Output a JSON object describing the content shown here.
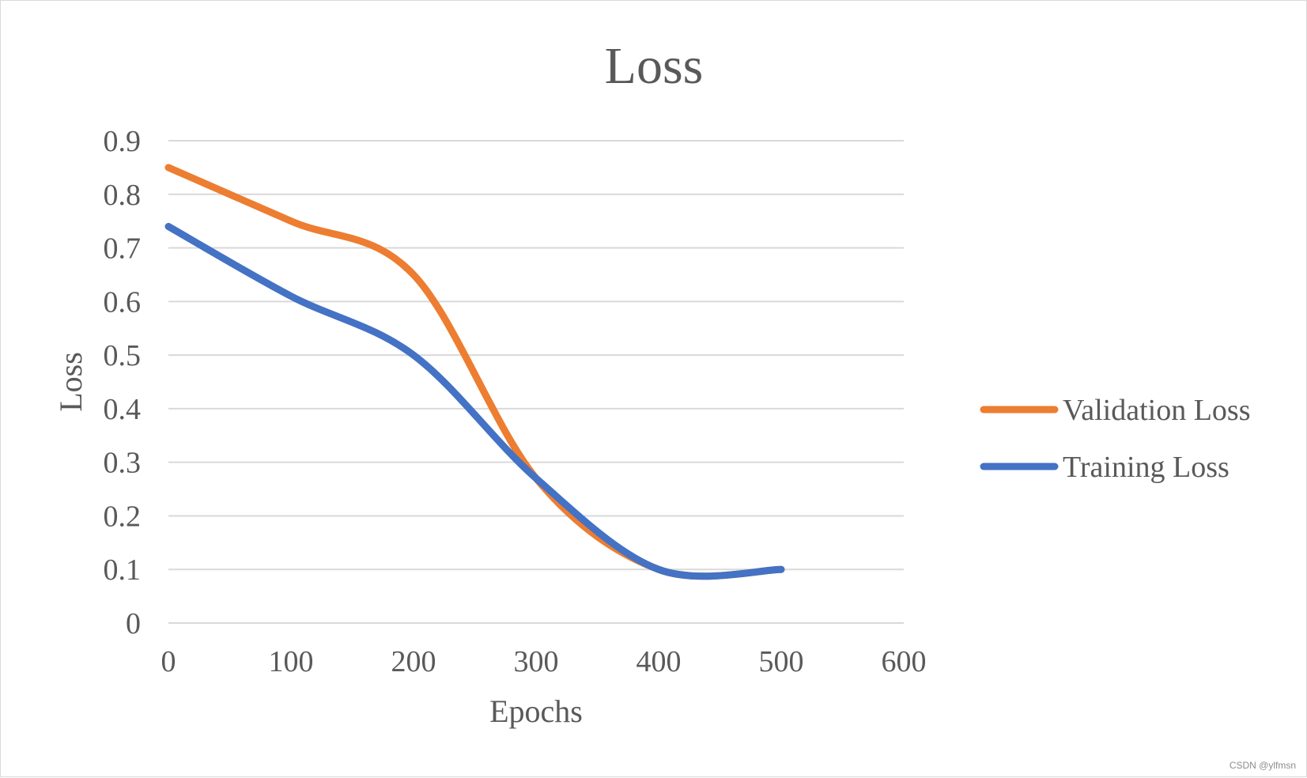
{
  "chart_data": {
    "type": "line",
    "title": "Loss",
    "xlabel": "Epochs",
    "ylabel": "Loss",
    "xlim": [
      0,
      600
    ],
    "ylim": [
      0,
      0.9
    ],
    "x_ticks": [
      "0",
      "100",
      "200",
      "300",
      "400",
      "500",
      "600"
    ],
    "y_ticks": [
      "0",
      "0.1",
      "0.2",
      "0.3",
      "0.4",
      "0.5",
      "0.6",
      "0.7",
      "0.8",
      "0.9"
    ],
    "grid": true,
    "legend_position": "right",
    "x": [
      0,
      100,
      200,
      300,
      400,
      500
    ],
    "series": [
      {
        "name": "Validation Loss",
        "color": "#ed7d31",
        "values": [
          0.85,
          0.75,
          0.65,
          0.27,
          0.1,
          0.1
        ]
      },
      {
        "name": "Training Loss",
        "color": "#4472c4",
        "values": [
          0.74,
          0.61,
          0.5,
          0.27,
          0.1,
          0.1
        ]
      }
    ]
  },
  "watermark": "CSDN @ylfmsn"
}
